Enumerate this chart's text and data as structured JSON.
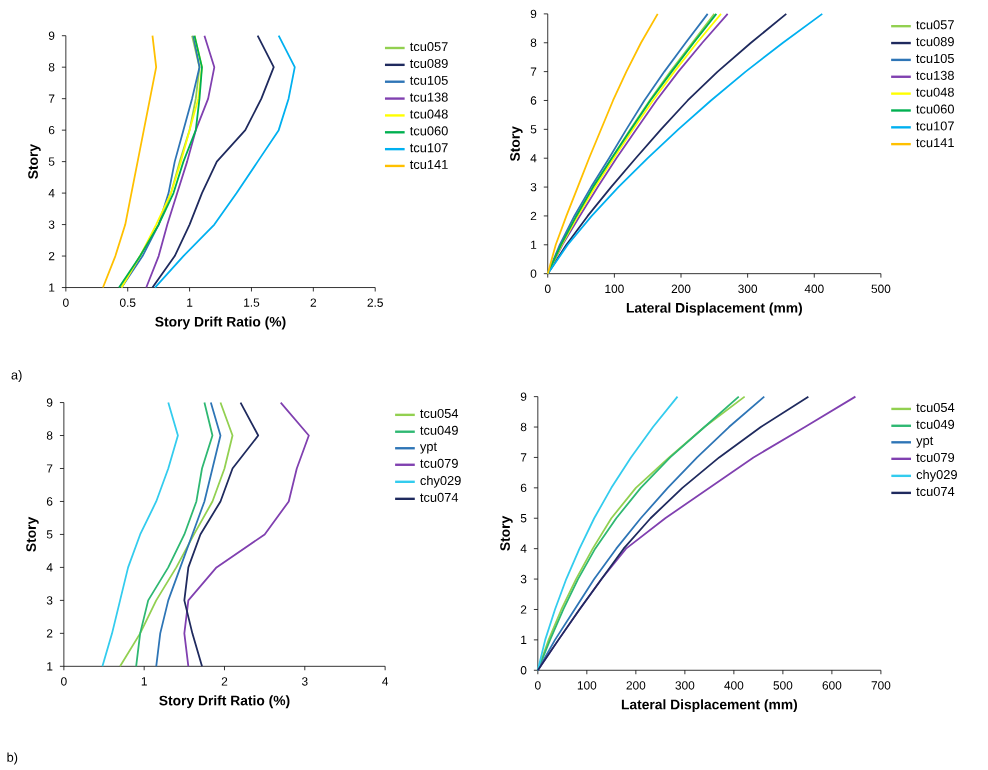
{
  "chart_data": [
    {
      "type": "line",
      "xlabel": "Story Drift Ratio (%)",
      "ylabel": "Story",
      "xlim": [
        0,
        2.5
      ],
      "ylim": [
        1,
        9
      ],
      "xticks": [
        0,
        0.5,
        1,
        1.5,
        2,
        2.5
      ],
      "yticks": [
        1,
        2,
        3,
        4,
        5,
        6,
        7,
        8,
        9
      ],
      "legend": "right",
      "annotations": [
        "a)"
      ],
      "series": [
        {
          "name": "tcu057",
          "color": "#92d050",
          "x": [
            0.45,
            0.6,
            0.75,
            0.85,
            0.92,
            1.0,
            1.05,
            1.08,
            1.02
          ],
          "values": [
            1,
            2,
            3,
            4,
            5,
            6,
            7,
            8,
            9
          ]
        },
        {
          "name": "tcu089",
          "color": "#1f2a5e",
          "x": [
            0.7,
            0.88,
            1.0,
            1.1,
            1.22,
            1.45,
            1.58,
            1.68,
            1.55
          ],
          "values": [
            1,
            2,
            3,
            4,
            5,
            6,
            7,
            8,
            9
          ]
        },
        {
          "name": "tcu105",
          "color": "#2e75b6",
          "x": [
            0.45,
            0.62,
            0.75,
            0.83,
            0.88,
            0.95,
            1.02,
            1.08,
            1.03
          ],
          "values": [
            1,
            2,
            3,
            4,
            5,
            6,
            7,
            8,
            9
          ]
        },
        {
          "name": "tcu138",
          "color": "#8040b0",
          "x": [
            0.65,
            0.75,
            0.82,
            0.9,
            0.98,
            1.05,
            1.15,
            1.2,
            1.12
          ],
          "values": [
            1,
            2,
            3,
            4,
            5,
            6,
            7,
            8,
            9
          ]
        },
        {
          "name": "tcu048",
          "color": "#ffff00",
          "x": [
            0.45,
            0.6,
            0.73,
            0.85,
            0.93,
            1.0,
            1.07,
            1.1,
            1.04
          ],
          "values": [
            1,
            2,
            3,
            4,
            5,
            6,
            7,
            8,
            9
          ]
        },
        {
          "name": "tcu060",
          "color": "#00b050",
          "x": [
            0.43,
            0.6,
            0.75,
            0.87,
            0.95,
            1.05,
            1.08,
            1.1,
            1.04
          ],
          "values": [
            1,
            2,
            3,
            4,
            5,
            6,
            7,
            8,
            9
          ]
        },
        {
          "name": "tcu107",
          "color": "#00b0f0",
          "x": [
            0.72,
            0.95,
            1.2,
            1.38,
            1.55,
            1.72,
            1.8,
            1.85,
            1.72
          ],
          "values": [
            1,
            2,
            3,
            4,
            5,
            6,
            7,
            8,
            9
          ]
        },
        {
          "name": "tcu141",
          "color": "#ffc000",
          "x": [
            0.3,
            0.4,
            0.48,
            0.53,
            0.58,
            0.63,
            0.68,
            0.73,
            0.7
          ],
          "values": [
            1,
            2,
            3,
            4,
            5,
            6,
            7,
            8,
            9
          ]
        }
      ]
    },
    {
      "type": "line",
      "xlabel": "Lateral Displacement (mm)",
      "ylabel": "Story",
      "xlim": [
        0,
        500
      ],
      "ylim": [
        0,
        9
      ],
      "xticks": [
        0,
        100,
        200,
        300,
        400,
        500
      ],
      "yticks": [
        0,
        1,
        2,
        3,
        4,
        5,
        6,
        7,
        8,
        9
      ],
      "legend": "right",
      "series": [
        {
          "name": "tcu057",
          "color": "#92d050",
          "x": [
            0,
            20,
            43,
            68,
            96,
            124,
            153,
            184,
            217,
            250
          ],
          "values": [
            0,
            1,
            2,
            3,
            4,
            5,
            6,
            7,
            8,
            9
          ]
        },
        {
          "name": "tcu089",
          "color": "#1f2a5e",
          "x": [
            0,
            28,
            60,
            95,
            132,
            170,
            210,
            255,
            305,
            358
          ],
          "values": [
            0,
            1,
            2,
            3,
            4,
            5,
            6,
            7,
            8,
            9
          ]
        },
        {
          "name": "tcu105",
          "color": "#2e75b6",
          "x": [
            0,
            18,
            40,
            65,
            92,
            118,
            145,
            175,
            207,
            240
          ],
          "values": [
            0,
            1,
            2,
            3,
            4,
            5,
            6,
            7,
            8,
            9
          ]
        },
        {
          "name": "tcu138",
          "color": "#8040b0",
          "x": [
            0,
            22,
            48,
            75,
            103,
            133,
            163,
            196,
            232,
            270
          ],
          "values": [
            0,
            1,
            2,
            3,
            4,
            5,
            6,
            7,
            8,
            9
          ]
        },
        {
          "name": "tcu048",
          "color": "#ffff00",
          "x": [
            0,
            21,
            45,
            71,
            99,
            128,
            158,
            190,
            224,
            260
          ],
          "values": [
            0,
            1,
            2,
            3,
            4,
            5,
            6,
            7,
            8,
            9
          ]
        },
        {
          "name": "tcu060",
          "color": "#00b050",
          "x": [
            0,
            20,
            43,
            68,
            96,
            125,
            154,
            186,
            219,
            253
          ],
          "values": [
            0,
            1,
            2,
            3,
            4,
            5,
            6,
            7,
            8,
            9
          ]
        },
        {
          "name": "tcu107",
          "color": "#00b0f0",
          "x": [
            0,
            30,
            66,
            106,
            150,
            196,
            245,
            297,
            353,
            412
          ],
          "values": [
            0,
            1,
            2,
            3,
            4,
            5,
            6,
            7,
            8,
            9
          ]
        },
        {
          "name": "tcu141",
          "color": "#ffc000",
          "x": [
            0,
            12,
            28,
            45,
            62,
            80,
            98,
            118,
            140,
            165
          ],
          "values": [
            0,
            1,
            2,
            3,
            4,
            5,
            6,
            7,
            8,
            9
          ]
        }
      ]
    },
    {
      "type": "line",
      "xlabel": "Story Drift Ratio (%)",
      "ylabel": "Story",
      "xlim": [
        0,
        4
      ],
      "ylim": [
        1,
        9
      ],
      "xticks": [
        0,
        1,
        2,
        3,
        4
      ],
      "yticks": [
        1,
        2,
        3,
        4,
        5,
        6,
        7,
        8,
        9
      ],
      "legend": "right",
      "annotations": [
        "b)"
      ],
      "series": [
        {
          "name": "tcu054",
          "color": "#92d050",
          "x": [
            0.7,
            0.95,
            1.15,
            1.4,
            1.62,
            1.85,
            2.0,
            2.1,
            1.95
          ],
          "values": [
            1,
            2,
            3,
            4,
            5,
            6,
            7,
            8,
            9
          ]
        },
        {
          "name": "tcu049",
          "color": "#2eb872",
          "x": [
            0.9,
            0.95,
            1.05,
            1.3,
            1.5,
            1.65,
            1.72,
            1.85,
            1.75
          ],
          "values": [
            1,
            2,
            3,
            4,
            5,
            6,
            7,
            8,
            9
          ]
        },
        {
          "name": "ypt",
          "color": "#2e75b6",
          "x": [
            1.15,
            1.2,
            1.3,
            1.45,
            1.6,
            1.75,
            1.85,
            1.95,
            1.83
          ],
          "values": [
            1,
            2,
            3,
            4,
            5,
            6,
            7,
            8,
            9
          ]
        },
        {
          "name": "tcu079",
          "color": "#8040b0",
          "x": [
            1.55,
            1.5,
            1.55,
            1.9,
            2.5,
            2.8,
            2.9,
            3.05,
            2.7
          ],
          "values": [
            1,
            2,
            3,
            4,
            5,
            6,
            7,
            8,
            9
          ]
        },
        {
          "name": "chy029",
          "color": "#33ccee",
          "x": [
            0.48,
            0.6,
            0.7,
            0.8,
            0.95,
            1.15,
            1.3,
            1.42,
            1.3
          ],
          "values": [
            1,
            2,
            3,
            4,
            5,
            6,
            7,
            8,
            9
          ]
        },
        {
          "name": "tcu074",
          "color": "#1f2a5e",
          "x": [
            1.72,
            1.6,
            1.5,
            1.55,
            1.7,
            1.95,
            2.1,
            2.42,
            2.2
          ],
          "values": [
            1,
            2,
            3,
            4,
            5,
            6,
            7,
            8,
            9
          ]
        }
      ]
    },
    {
      "type": "line",
      "xlabel": "Lateral Displacement (mm)",
      "ylabel": "Story",
      "xlim": [
        0,
        700
      ],
      "ylim": [
        0,
        9
      ],
      "xticks": [
        0,
        100,
        200,
        300,
        400,
        500,
        600,
        700
      ],
      "yticks": [
        0,
        1,
        2,
        3,
        4,
        5,
        6,
        7,
        8,
        9
      ],
      "legend": "right",
      "series": [
        {
          "name": "tcu054",
          "color": "#92d050",
          "x": [
            0,
            22,
            48,
            78,
            112,
            150,
            200,
            268,
            340,
            422
          ],
          "values": [
            0,
            1,
            2,
            3,
            4,
            5,
            6,
            7,
            8,
            9
          ]
        },
        {
          "name": "tcu049",
          "color": "#2eb872",
          "x": [
            0,
            25,
            52,
            82,
            117,
            160,
            210,
            270,
            340,
            410
          ],
          "values": [
            0,
            1,
            2,
            3,
            4,
            5,
            6,
            7,
            8,
            9
          ]
        },
        {
          "name": "ypt",
          "color": "#2e75b6",
          "x": [
            0,
            35,
            75,
            115,
            160,
            210,
            265,
            325,
            390,
            462
          ],
          "values": [
            0,
            1,
            2,
            3,
            4,
            5,
            6,
            7,
            8,
            9
          ]
        },
        {
          "name": "tcu079",
          "color": "#8040b0",
          "x": [
            0,
            42,
            85,
            130,
            180,
            260,
            350,
            440,
            545,
            648
          ],
          "values": [
            0,
            1,
            2,
            3,
            4,
            5,
            6,
            7,
            8,
            9
          ]
        },
        {
          "name": "chy029",
          "color": "#33ccee",
          "x": [
            0,
            15,
            35,
            58,
            85,
            115,
            150,
            190,
            235,
            285
          ],
          "values": [
            0,
            1,
            2,
            3,
            4,
            5,
            6,
            7,
            8,
            9
          ]
        },
        {
          "name": "tcu074",
          "color": "#1f2a5e",
          "x": [
            0,
            42,
            85,
            130,
            175,
            230,
            295,
            370,
            455,
            552
          ],
          "values": [
            0,
            1,
            2,
            3,
            4,
            5,
            6,
            7,
            8,
            9
          ]
        }
      ]
    }
  ]
}
